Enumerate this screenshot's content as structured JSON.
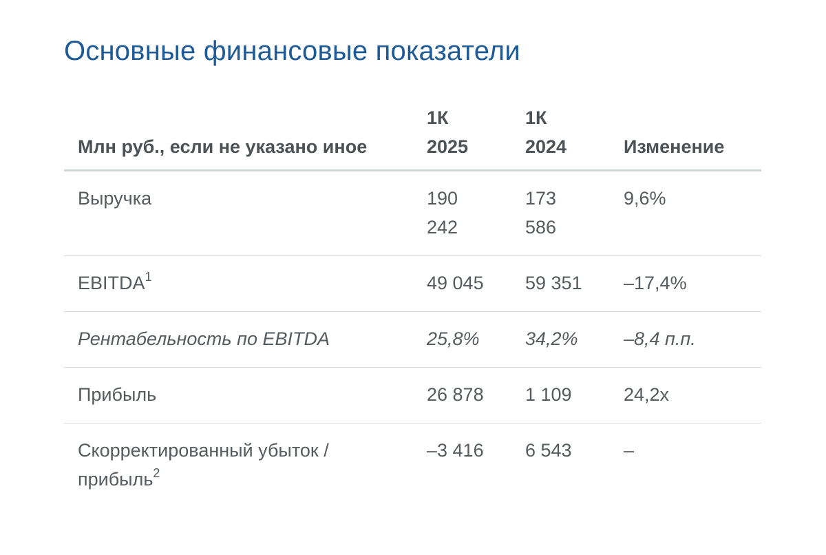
{
  "title": "Основные финансовые показатели",
  "table": {
    "headers": {
      "label": "Млн руб., если не указано иное",
      "q1_2025_line1": "1К",
      "q1_2025_line2": "2025",
      "q1_2024_line1": "1К",
      "q1_2024_line2": "2024",
      "change": "Изменение"
    },
    "rows": [
      {
        "label": "Выручка",
        "footnote": "",
        "q1_2025_line1": "190",
        "q1_2025_line2": "242",
        "q1_2024_line1": "173",
        "q1_2024_line2": "586",
        "change": "9,6%"
      },
      {
        "label": "EBITDA",
        "footnote": "1",
        "q1_2025": "49 045",
        "q1_2024": "59 351",
        "change": "–17,4%"
      },
      {
        "label": "Рентабельность по EBITDA",
        "q1_2025": "25,8%",
        "q1_2024": "34,2%",
        "change": "–8,4 п.п."
      },
      {
        "label": "Прибыль",
        "q1_2025": "26 878",
        "q1_2024": "1 109",
        "change": "24,2x"
      },
      {
        "label_line1": "Скорректированный убыток /",
        "label_line2": "прибыль",
        "footnote": "2",
        "q1_2025": "–3 416",
        "q1_2024": "6 543",
        "change": "–"
      }
    ]
  }
}
